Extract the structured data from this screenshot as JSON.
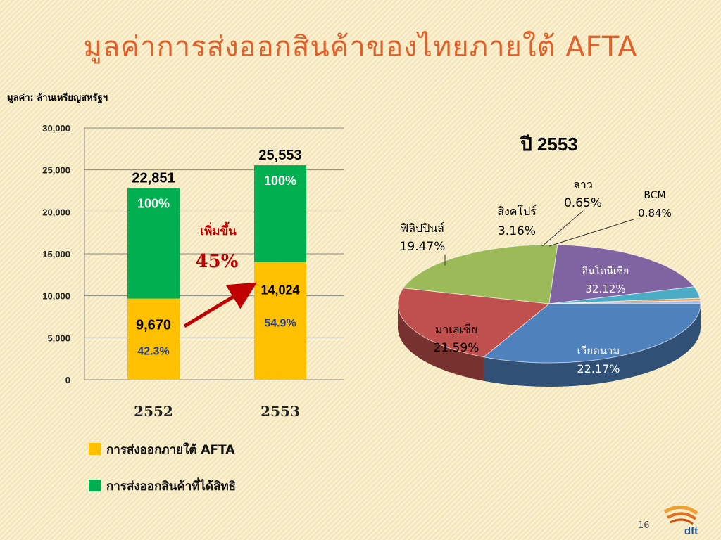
{
  "slide": {
    "title": "มูลค่าการส่งออกสินค้าของไทยภายใต้ AFTA",
    "unit_label": "มูลค่า: ล้านเหรียญสหรัฐฯ",
    "page_number": "16",
    "logo_text": "dft"
  },
  "chart_data": [
    {
      "type": "bar",
      "subtype": "stacked",
      "categories": [
        "2552",
        "2553"
      ],
      "ylim": [
        0,
        30000
      ],
      "yticks": [
        "0",
        "5,000",
        "10,000",
        "15,000",
        "20,000",
        "25,000",
        "30,000"
      ],
      "yticks_values": [
        0,
        5000,
        10000,
        15000,
        20000,
        25000,
        30000
      ],
      "grid": true,
      "series": [
        {
          "name": "การส่งออกภายใต้ AFTA",
          "color": "#ffc000",
          "values": [
            9670,
            14024
          ],
          "value_labels": [
            "9,670",
            "14,024"
          ],
          "pct_labels": [
            "42.3%",
            "54.9%"
          ]
        },
        {
          "name": "การส่งออกสินค้าที่ได้สิทธิ",
          "color": "#00b050",
          "values": [
            13181,
            11529
          ],
          "total_labels": [
            "22,851",
            "25,553"
          ],
          "pct_labels": [
            "100%",
            "100%"
          ]
        }
      ],
      "annotation": {
        "text": "เพิ่มขึ้น",
        "value": "45%"
      },
      "legend_position": "bottom"
    },
    {
      "type": "pie",
      "title": "ปี 2553",
      "slices": [
        {
          "label": "อินโดนีเซีย",
          "value": 32.12,
          "display": "32.12%",
          "color": "#4f81bd"
        },
        {
          "label": "เวียดนาม",
          "value": 22.17,
          "display": "22.17%",
          "color": "#c0504d"
        },
        {
          "label": "มาเลเซีย",
          "value": 21.59,
          "display": "21.59%",
          "color": "#9bbb59"
        },
        {
          "label": "ฟิลิปปินส์",
          "value": 19.47,
          "display": "19.47%",
          "color": "#8064a2"
        },
        {
          "label": "สิงคโปร์",
          "value": 3.16,
          "display": "3.16%",
          "color": "#4bacc6"
        },
        {
          "label": "ลาว",
          "value": 0.65,
          "display": "0.65%",
          "color": "#f79646"
        },
        {
          "label": "BCM",
          "value": 0.84,
          "display": "0.84%",
          "color": "#a6b8e0"
        }
      ]
    }
  ]
}
